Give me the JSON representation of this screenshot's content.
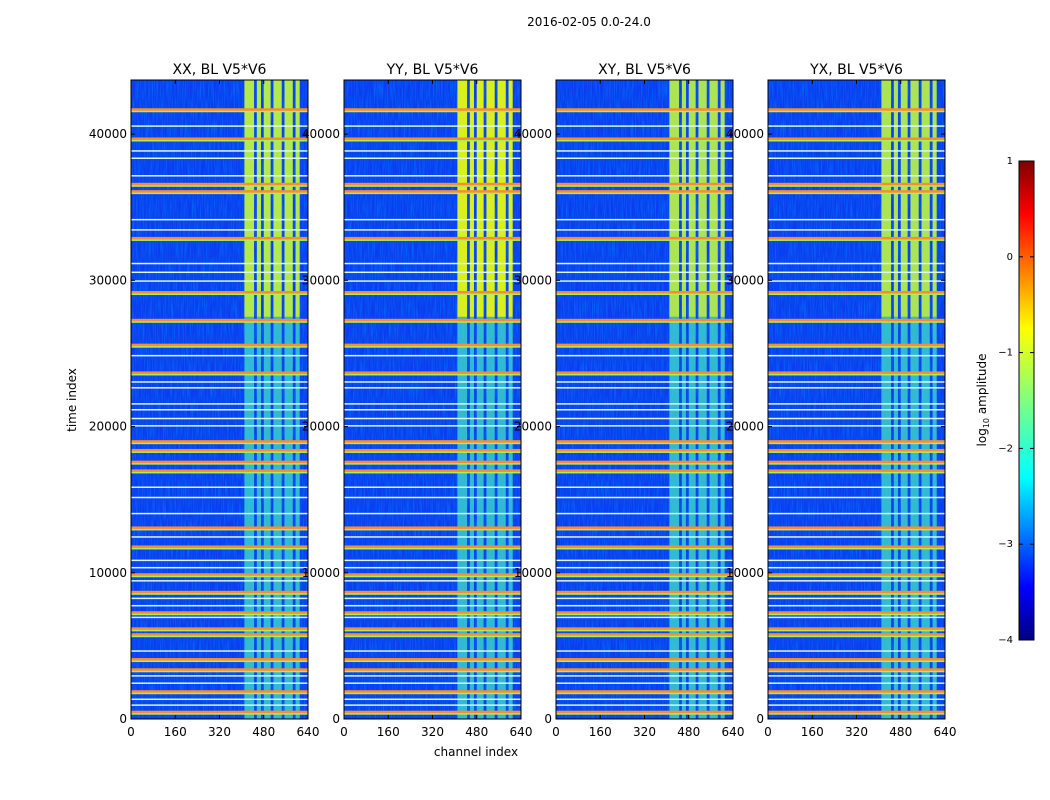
{
  "chart_data": {
    "type": "heatmap",
    "suptitle": "2016-02-05 0.0-24.0",
    "xlabel": "channel index",
    "ylabel": "time index",
    "xlim": [
      0,
      640
    ],
    "ylim": [
      0,
      43700
    ],
    "xticks": [
      0,
      160,
      320,
      480,
      640
    ],
    "yticks": [
      0,
      10000,
      20000,
      30000,
      40000
    ],
    "panels": [
      {
        "title": "XX, BL V5*V6",
        "upper_intensity": 0.92
      },
      {
        "title": "YY, BL V5*V6",
        "upper_intensity": 1.0
      },
      {
        "title": "XY, BL V5*V6",
        "upper_intensity": 0.82
      },
      {
        "title": "YX, BL V5*V6",
        "upper_intensity": 0.82
      }
    ],
    "rfi_channel_bands": [
      [
        410,
        445
      ],
      [
        455,
        470
      ],
      [
        480,
        505
      ],
      [
        515,
        545
      ],
      [
        555,
        585
      ],
      [
        595,
        610
      ]
    ],
    "interference_times_high": [
      41700,
      39700,
      36600,
      36100,
      32900,
      29200,
      27300,
      25600,
      23700,
      19000,
      18400,
      17600,
      17000,
      13100,
      11800,
      9900,
      8700,
      7300,
      6200,
      5800,
      4100,
      3400,
      1900,
      500
    ],
    "interference_times_low": [
      40600,
      38900,
      38400,
      37200,
      34200,
      33500,
      31200,
      30600,
      30000,
      24900,
      23100,
      22700,
      21600,
      21200,
      20600,
      20100,
      15900,
      15200,
      14100,
      12500,
      10900,
      10400,
      9500,
      8300,
      7800,
      7000,
      4700,
      3000,
      2500,
      1400,
      1000
    ],
    "colorbar": {
      "label": "log",
      "label_sub": "10",
      "label_suffix": " amplitude",
      "range": [
        -4,
        1
      ],
      "ticks": [
        "1",
        "0",
        "−1",
        "−2",
        "−3",
        "−4"
      ]
    }
  }
}
